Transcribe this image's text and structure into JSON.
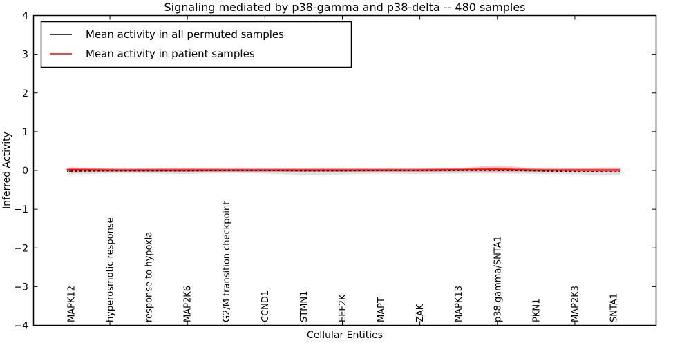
{
  "chart_data": {
    "type": "line",
    "title": "Signaling mediated by p38-gamma and p38-delta -- 480 samples",
    "xlabel": "Cellular Entities",
    "ylabel": "Inferred Activity",
    "ylim": [
      -4,
      4
    ],
    "yticks": [
      4,
      3,
      2,
      1,
      0,
      -1,
      -2,
      -3,
      -4
    ],
    "grid": false,
    "legend_position": "upper left",
    "categories": [
      "MAPK12",
      "hyperosmotic response",
      "response to hypoxia",
      "MAP2K6",
      "G2/M transition checkpoint",
      "CCND1",
      "STMN1",
      "EEF2K",
      "MAPT",
      "ZAK",
      "MAPK13",
      "p38 gamma/SNTA1",
      "PKN1",
      "MAP2K3",
      "SNTA1"
    ],
    "series": [
      {
        "name": "Mean activity in all permuted samples",
        "color": "#000000",
        "line_style": "dashed-marks",
        "values": [
          -0.02,
          -0.01,
          -0.01,
          -0.01,
          0.0,
          0.0,
          -0.01,
          -0.01,
          0.0,
          0.0,
          0.0,
          0.0,
          -0.01,
          -0.03,
          -0.04
        ]
      },
      {
        "name": "Mean activity in patient samples",
        "color": "#ff0000",
        "line_style": "solid",
        "values": [
          0.02,
          0.01,
          0.01,
          0.01,
          0.01,
          0.01,
          0.01,
          0.01,
          0.01,
          0.01,
          0.02,
          0.03,
          0.01,
          0.01,
          0.01
        ]
      }
    ],
    "bands": [
      {
        "name": "permuted samples spread",
        "color": "#000000",
        "opacity": 0.12,
        "upper": [
          0.06,
          0.05,
          0.05,
          0.05,
          0.05,
          0.05,
          0.05,
          0.05,
          0.05,
          0.05,
          0.05,
          0.06,
          0.06,
          0.07,
          0.08
        ],
        "lower": [
          -0.1,
          -0.08,
          -0.08,
          -0.09,
          -0.07,
          -0.08,
          -0.11,
          -0.1,
          -0.08,
          -0.09,
          -0.08,
          -0.08,
          -0.09,
          -0.1,
          -0.12
        ]
      },
      {
        "name": "patient samples spread",
        "color": "#ff0000",
        "opacity": 0.22,
        "upper": [
          0.08,
          0.05,
          0.05,
          0.06,
          0.05,
          0.05,
          0.05,
          0.05,
          0.05,
          0.05,
          0.06,
          0.13,
          0.05,
          0.04,
          0.04
        ],
        "lower": [
          -0.06,
          -0.04,
          -0.04,
          -0.05,
          -0.04,
          -0.04,
          -0.05,
          -0.04,
          -0.04,
          -0.04,
          -0.04,
          -0.05,
          -0.04,
          -0.03,
          -0.03
        ]
      }
    ]
  },
  "colors": {
    "background": "#ffffff",
    "axis": "#000000",
    "permuted_line": "#000000",
    "patient_line": "#ff0000"
  }
}
